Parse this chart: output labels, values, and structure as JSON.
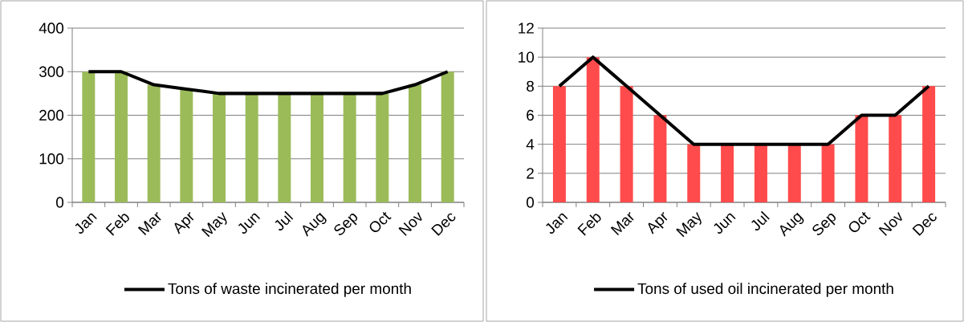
{
  "chart_data": [
    {
      "type": "bar",
      "categories": [
        "Jan",
        "Feb",
        "Mar",
        "Apr",
        "May",
        "Jun",
        "Jul",
        "Aug",
        "Sep",
        "Oct",
        "Nov",
        "Dec"
      ],
      "series": [
        {
          "color": "#9bbb59",
          "values": [
            300,
            300,
            270,
            260,
            250,
            250,
            250,
            250,
            250,
            250,
            270,
            300
          ]
        },
        {
          "type": "line",
          "name": "Tons of waste incinerated per month",
          "color": "#000000",
          "values": [
            300,
            300,
            270,
            260,
            250,
            250,
            250,
            250,
            250,
            250,
            270,
            300
          ]
        }
      ],
      "ylim": [
        0,
        400
      ],
      "yticks": [
        0,
        100,
        200,
        300,
        400
      ],
      "grid": "y",
      "legend": "bottom"
    },
    {
      "type": "bar",
      "categories": [
        "Jan",
        "Feb",
        "Mar",
        "Apr",
        "May",
        "Jun",
        "Jul",
        "Aug",
        "Sep",
        "Oct",
        "Nov",
        "Dec"
      ],
      "series": [
        {
          "color": "#ff4b4b",
          "values": [
            8,
            10,
            8,
            6,
            4,
            4,
            4,
            4,
            4,
            6,
            6,
            8
          ]
        },
        {
          "type": "line",
          "name": "Tons of used oil incinerated per month",
          "color": "#000000",
          "values": [
            8,
            10,
            8,
            6,
            4,
            4,
            4,
            4,
            4,
            6,
            6,
            8
          ]
        }
      ],
      "ylim": [
        0,
        12
      ],
      "yticks": [
        0,
        2,
        4,
        6,
        8,
        10,
        12
      ],
      "grid": "y",
      "legend": "bottom"
    }
  ]
}
